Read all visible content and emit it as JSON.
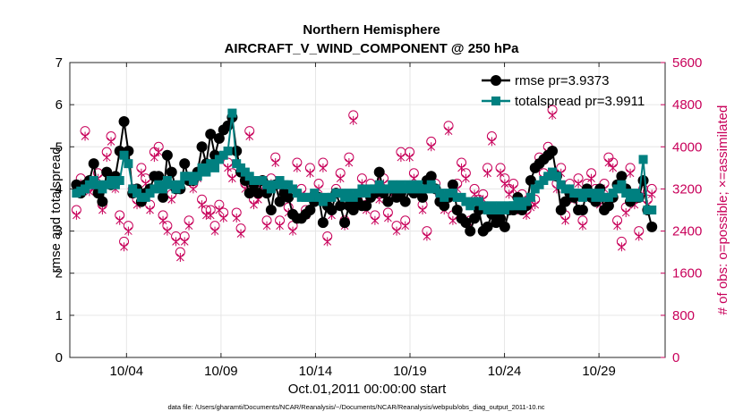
{
  "chart_data": {
    "type": "line",
    "title": "Northern Hemisphere",
    "subtitle": "AIRCRAFT_V_WIND_COMPONENT @ 250 hPa",
    "ylabel": "rmse and totalspread",
    "y2label": "# of obs: o=possible; ×=assimilated",
    "xlabel": "Oct.01,2011 00:00:00 start",
    "footnote": "data file: /Users/gharamti/Documents/NCAR/Reanalysis/~/Documents/NCAR/Reanalysis/webpub/obs_diag_output_2011-10.nc",
    "xlim": [
      1.0,
      32.5
    ],
    "ylim": [
      0,
      7
    ],
    "y2lim": [
      0,
      5600
    ],
    "xtick_values": [
      4,
      9,
      14,
      19,
      24,
      29
    ],
    "xtick_labels": [
      "10/04",
      "10/09",
      "10/14",
      "10/19",
      "10/24",
      "10/29"
    ],
    "ytick_labels": [
      "0",
      "1",
      "2",
      "3",
      "4",
      "5",
      "6",
      "7"
    ],
    "y2tick_labels": [
      "0",
      "800",
      "1600",
      "2400",
      "3200",
      "4000",
      "4800",
      "5600"
    ],
    "legend_position": "top-right",
    "series": [
      {
        "name": "rmse pr=3.9373",
        "color": "#000000",
        "values": [
          4.1,
          3.9,
          4.1,
          4.2,
          4.6,
          3.9,
          3.7,
          4.4,
          4.1,
          4.3,
          4.9,
          5.6,
          4.9,
          3.9,
          4.0,
          3.7,
          3.9,
          4.0,
          4.3,
          4.3,
          3.8,
          4.8,
          4.4,
          4.0,
          4.0,
          4.6,
          4.2,
          4.2,
          4.4,
          5.0,
          4.6,
          5.3,
          4.8,
          5.2,
          5.4,
          5.5,
          5.7,
          4.9,
          4.4,
          4.2,
          3.9,
          4.1,
          3.9,
          4.2,
          3.9,
          3.5,
          4.1,
          3.7,
          3.9,
          3.8,
          3.4,
          3.3,
          3.3,
          3.4,
          3.5,
          3.7,
          3.8,
          3.2,
          3.6,
          3.5,
          3.9,
          3.6,
          3.2,
          3.6,
          3.5,
          3.7,
          3.6,
          3.6,
          3.8,
          3.9,
          4.4,
          3.9,
          3.7,
          4.0,
          3.8,
          3.9,
          3.7,
          4.0,
          3.9,
          4.0,
          3.8,
          4.2,
          4.3,
          4.0,
          3.7,
          3.6,
          3.8,
          4.1,
          3.5,
          3.3,
          3.2,
          3.0,
          3.3,
          3.5,
          3.0,
          3.1,
          3.4,
          3.2,
          3.3,
          3.1,
          3.5,
          3.5,
          3.8,
          3.5,
          3.6,
          4.2,
          4.5,
          4.6,
          4.7,
          4.8,
          4.9,
          4.3,
          3.5,
          3.7,
          3.9,
          3.8,
          3.5,
          3.5,
          4.0,
          3.8,
          3.7,
          4.0,
          3.5,
          3.6,
          3.8,
          4.1,
          4.3,
          4.0,
          3.7,
          3.8,
          3.8,
          4.2,
          3.5,
          3.1
        ]
      },
      {
        "name": "totalspread pr=3.9911",
        "color": "#008080",
        "values": [
          3.9,
          3.95,
          4.0,
          4.1,
          4.2,
          4.1,
          4.0,
          4.1,
          4.2,
          4.1,
          4.2,
          4.8,
          4.6,
          4.0,
          3.9,
          3.8,
          3.8,
          3.9,
          4.0,
          4.1,
          4.0,
          4.2,
          4.1,
          4.0,
          4.1,
          4.3,
          4.3,
          4.2,
          4.3,
          4.5,
          4.4,
          4.6,
          4.5,
          4.7,
          4.8,
          4.9,
          5.8,
          4.6,
          4.5,
          4.4,
          4.3,
          4.2,
          4.2,
          4.2,
          4.1,
          4.0,
          4.1,
          4.2,
          4.1,
          4.1,
          4.0,
          3.9,
          3.8,
          3.8,
          3.8,
          3.9,
          3.8,
          3.7,
          3.8,
          3.8,
          3.9,
          3.9,
          3.8,
          3.9,
          3.8,
          3.9,
          4.0,
          3.9,
          4.0,
          4.0,
          4.1,
          4.0,
          4.0,
          4.1,
          4.0,
          4.1,
          4.0,
          4.1,
          4.0,
          4.1,
          4.0,
          4.0,
          4.1,
          4.0,
          3.9,
          3.8,
          3.9,
          3.9,
          3.8,
          3.8,
          3.7,
          3.6,
          3.7,
          3.7,
          3.6,
          3.5,
          3.6,
          3.5,
          3.6,
          3.5,
          3.6,
          3.6,
          3.7,
          3.6,
          3.7,
          3.8,
          4.0,
          4.1,
          4.2,
          4.3,
          4.4,
          4.3,
          4.1,
          4.0,
          4.0,
          3.9,
          3.9,
          3.8,
          3.9,
          3.9,
          3.8,
          3.9,
          3.8,
          3.8,
          3.9,
          4.0,
          4.1,
          3.9,
          3.8,
          3.9,
          3.8,
          4.7,
          3.5,
          3.5
        ]
      },
      {
        "name": "# obs possible / assimilated",
        "color": "#c8005a",
        "axis": "right",
        "values": [
          2800,
          3400,
          4300,
          3250,
          3300,
          3500,
          2900,
          3900,
          4200,
          3300,
          2700,
          2200,
          2500,
          3200,
          3000,
          3600,
          3400,
          2900,
          3900,
          4000,
          2700,
          2500,
          3100,
          2300,
          2000,
          2300,
          2600,
          3300,
          3500,
          3000,
          2800,
          2800,
          2500,
          2900,
          2750,
          3700,
          3500,
          2750,
          2450,
          3300,
          4300,
          3000,
          3100,
          3300,
          2600,
          3400,
          3800,
          2600,
          3200,
          2850,
          2500,
          3700,
          3200,
          2800,
          3600,
          3100,
          3300,
          3700,
          2300,
          2800,
          3200,
          3500,
          2600,
          3800,
          4600,
          3000,
          3400,
          2900,
          3300,
          2700,
          3100,
          3400,
          2750,
          3200,
          2500,
          3900,
          2600,
          3900,
          3500,
          3200,
          2900,
          2400,
          4100,
          3300,
          3100,
          2900,
          4400,
          2700,
          3300,
          3700,
          3500,
          2600,
          3200,
          3000,
          3100,
          3600,
          4200,
          2800,
          3600,
          3400,
          3200,
          3300,
          2900,
          3100,
          2800,
          2950,
          3000,
          3800,
          3500,
          4000,
          4700,
          3300,
          3600,
          2700,
          3300,
          3100,
          3400,
          2600,
          3300,
          3500,
          3200,
          3000,
          3300,
          3800,
          3700,
          2600,
          2200,
          2850,
          3600,
          3000,
          2400,
          3200,
          3000,
          3200,
          3300,
          2300
        ]
      }
    ],
    "obs_assimilated_values": [
      2700,
      3300,
      4200,
      3150,
      3200,
      3400,
      2800,
      3800,
      4100,
      3200,
      2600,
      2100,
      2400,
      3100,
      2900,
      3500,
      3300,
      2800,
      3800,
      3900,
      2600,
      2400,
      3000,
      2200,
      1900,
      2200,
      2500,
      3200,
      3400,
      2900,
      2700,
      2700,
      2400,
      2800,
      2650,
      3600,
      3400,
      2650,
      2350,
      3200,
      4200,
      2900,
      3000,
      3200,
      2500,
      3300,
      3700,
      2500,
      3100,
      2750,
      2400,
      3600,
      3100,
      2700,
      3500,
      3000,
      3200,
      3600,
      2200,
      2700,
      3100,
      3400,
      2500,
      3700,
      4500,
      2900,
      3300,
      2800,
      3200,
      2600,
      3000,
      3300,
      2650,
      3100,
      2400,
      3800,
      2500,
      3800,
      3400,
      3100,
      2800,
      2300,
      4000,
      3200,
      3000,
      2800,
      4300,
      2600,
      3200,
      3600,
      3400,
      2500,
      3100,
      2900,
      3000,
      3500,
      4100,
      2700,
      3500,
      3300,
      3100,
      3200,
      2800,
      3000,
      2700,
      2850,
      2900,
      3700,
      3400,
      3900,
      4600,
      3200,
      3500,
      2600,
      3200,
      3000,
      3300,
      2500,
      3200,
      3400,
      3100,
      2900,
      3200,
      3700,
      3600,
      2500,
      2100,
      2750,
      3500,
      2900,
      2300,
      3100,
      2900,
      3100,
      3200,
      2200
    ]
  }
}
